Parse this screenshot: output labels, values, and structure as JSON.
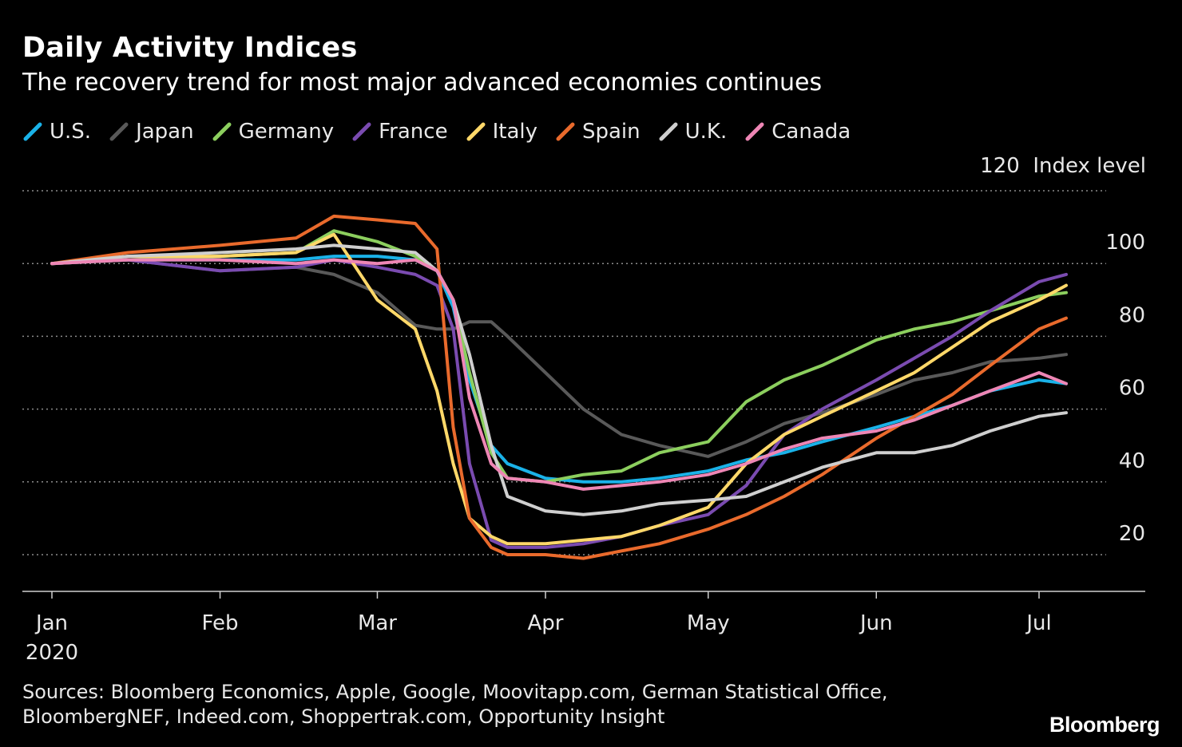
{
  "chart_data": {
    "type": "line",
    "title": "Daily Activity Indices",
    "subtitle": "The recovery trend for most major advanced economies continues",
    "ylabel": "Index level",
    "ylim": [
      10,
      120
    ],
    "yticks": [
      20,
      40,
      60,
      80,
      100,
      120
    ],
    "grid": true,
    "legend_position": "top",
    "x_ticks": [
      {
        "date": "2020-01-01",
        "label": "Jan",
        "sublabel": "2020"
      },
      {
        "date": "2020-02-01",
        "label": "Feb"
      },
      {
        "date": "2020-03-01",
        "label": "Mar"
      },
      {
        "date": "2020-04-01",
        "label": "Apr"
      },
      {
        "date": "2020-05-01",
        "label": "May"
      },
      {
        "date": "2020-06-01",
        "label": "Jun"
      },
      {
        "date": "2020-07-01",
        "label": "Jul"
      }
    ],
    "xlim": [
      "2019-12-27",
      "2020-07-20"
    ],
    "x": [
      "2020-01-01",
      "2020-01-15",
      "2020-02-01",
      "2020-02-15",
      "2020-02-22",
      "2020-03-01",
      "2020-03-08",
      "2020-03-12",
      "2020-03-15",
      "2020-03-18",
      "2020-03-22",
      "2020-03-25",
      "2020-04-01",
      "2020-04-08",
      "2020-04-15",
      "2020-04-22",
      "2020-05-01",
      "2020-05-08",
      "2020-05-15",
      "2020-05-22",
      "2020-06-01",
      "2020-06-08",
      "2020-06-15",
      "2020-06-22",
      "2020-07-01",
      "2020-07-06"
    ],
    "series": [
      {
        "name": "U.S.",
        "color": "#1ab2e8",
        "values": [
          100,
          101,
          101,
          101,
          102,
          102,
          101,
          98,
          88,
          68,
          50,
          45,
          41,
          40,
          40,
          41,
          43,
          46,
          48,
          51,
          55,
          58,
          61,
          65,
          68,
          67
        ]
      },
      {
        "name": "Japan",
        "color": "#595959",
        "values": [
          100,
          101,
          98,
          99,
          97,
          92,
          83,
          82,
          82,
          84,
          84,
          80,
          70,
          60,
          53,
          50,
          47,
          51,
          56,
          59,
          64,
          68,
          70,
          73,
          74,
          75
        ]
      },
      {
        "name": "Germany",
        "color": "#8ccf5e",
        "values": [
          100,
          101,
          102,
          103,
          109,
          106,
          102,
          98,
          90,
          70,
          48,
          41,
          40,
          42,
          43,
          48,
          51,
          62,
          68,
          72,
          79,
          82,
          84,
          87,
          91,
          92
        ]
      },
      {
        "name": "France",
        "color": "#7a4bb0",
        "values": [
          100,
          101,
          98,
          99,
          101,
          99,
          97,
          94,
          82,
          45,
          24,
          22,
          22,
          23,
          25,
          28,
          31,
          39,
          53,
          60,
          68,
          74,
          80,
          87,
          95,
          97
        ]
      },
      {
        "name": "Italy",
        "color": "#ffd869",
        "values": [
          100,
          102,
          102,
          103,
          108,
          90,
          82,
          65,
          45,
          30,
          25,
          23,
          23,
          24,
          25,
          28,
          33,
          45,
          53,
          58,
          65,
          70,
          77,
          84,
          90,
          94
        ]
      },
      {
        "name": "Spain",
        "color": "#e96a2c",
        "values": [
          100,
          103,
          105,
          107,
          113,
          112,
          111,
          104,
          55,
          30,
          22,
          20,
          20,
          19,
          21,
          23,
          27,
          31,
          36,
          42,
          52,
          58,
          64,
          72,
          82,
          85
        ]
      },
      {
        "name": "U.K.",
        "color": "#cfcfcf",
        "values": [
          100,
          102,
          103,
          104,
          105,
          104,
          103,
          98,
          90,
          75,
          50,
          36,
          32,
          31,
          32,
          34,
          35,
          36,
          40,
          44,
          48,
          48,
          50,
          54,
          58,
          59
        ]
      },
      {
        "name": "Canada",
        "color": "#ee86b5",
        "values": [
          100,
          101,
          101,
          100,
          101,
          100,
          101,
          98,
          90,
          63,
          45,
          41,
          40,
          38,
          39,
          40,
          42,
          45,
          49,
          52,
          54,
          57,
          61,
          65,
          70,
          67
        ]
      }
    ]
  },
  "sources": "Sources: Bloomberg Economics, Apple, Google, Moovitapp.com, German Statistical Office, BloombergNEF, Indeed.com, Shoppertrak.com, Opportunity Insight",
  "brand": "Bloomberg"
}
